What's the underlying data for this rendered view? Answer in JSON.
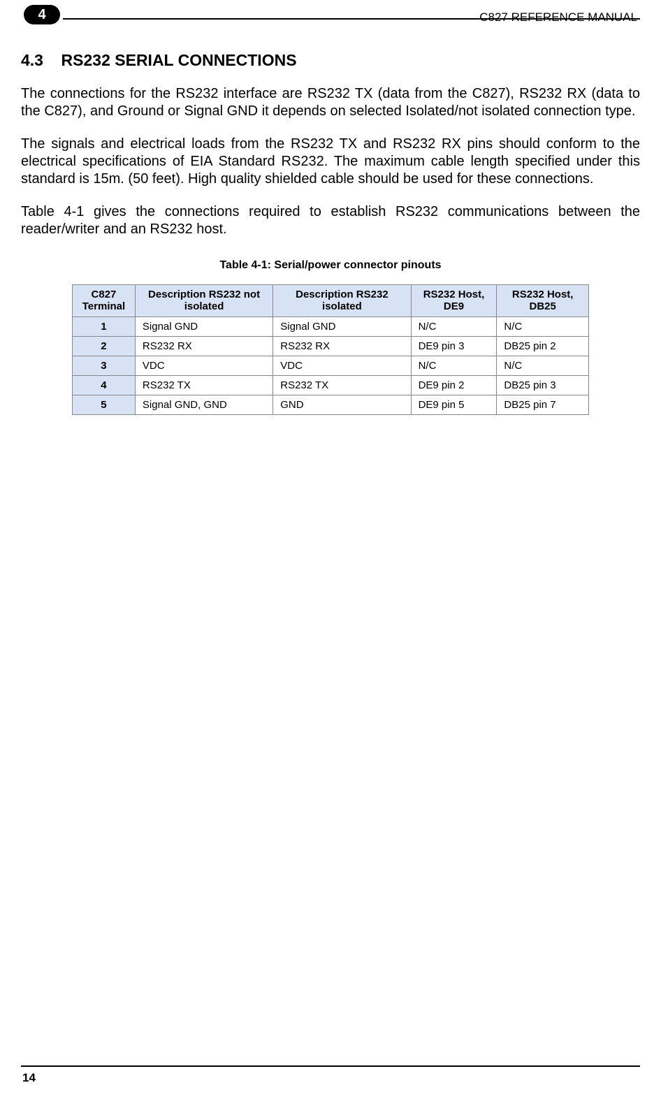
{
  "header": {
    "chapter_number": "4",
    "manual_title": "C827 REFERENCE MANUAL"
  },
  "section": {
    "number": "4.3",
    "title": "RS232 SERIAL CONNECTIONS"
  },
  "paragraphs": {
    "p1": "The connections for the RS232 interface are RS232 TX (data from the C827), RS232 RX (data to the C827), and Ground or Signal GND it depends on selected Isolated/not isolated connection type.",
    "p2": "The signals and electrical loads from the RS232 TX and RS232 RX pins should conform to the electrical specifications of EIA Standard RS232. The maximum cable length specified under this standard is 15m. (50 feet). High quality shielded cable should be used for these connections.",
    "p3": "Table 4-1 gives the connections required to establish RS232 communications between the reader/writer and an RS232 host."
  },
  "table": {
    "caption": "Table 4-1: Serial/power connector pinouts",
    "header_bg": "#d7e3f4",
    "border_color": "#888888",
    "columns": {
      "c1": "C827 Terminal",
      "c2": "Description RS232 not isolated",
      "c3": "Description RS232 isolated",
      "c4": "RS232 Host, DE9",
      "c5": "RS232 Host, DB25"
    },
    "rows": {
      "r1": {
        "num": "1",
        "d_not": "Signal GND",
        "d_iso": "Signal GND",
        "de9": "N/C",
        "db25": "N/C"
      },
      "r2": {
        "num": "2",
        "d_not": "RS232 RX",
        "d_iso": "RS232 RX",
        "de9": "DE9 pin 3",
        "db25": "DB25 pin 2"
      },
      "r3": {
        "num": "3",
        "d_not": "VDC",
        "d_iso": "VDC",
        "de9": "N/C",
        "db25": "N/C"
      },
      "r4": {
        "num": "4",
        "d_not": "RS232 TX",
        "d_iso": "RS232 TX",
        "de9": "DE9 pin 2",
        "db25": "DB25 pin 3"
      },
      "r5": {
        "num": "5",
        "d_not": "Signal GND, GND",
        "d_iso": "GND",
        "de9": "DE9 pin 5",
        "db25": "DB25 pin 7"
      }
    }
  },
  "footer": {
    "page_number": "14"
  },
  "typography": {
    "body_font_size_pt": 15,
    "heading_font_size_pt": 17,
    "table_font_size_pt": 11,
    "caption_font_size_pt": 12
  },
  "colors": {
    "text": "#000000",
    "background": "#ffffff",
    "table_header_bg": "#d7e3f4",
    "rule": "#000000"
  }
}
